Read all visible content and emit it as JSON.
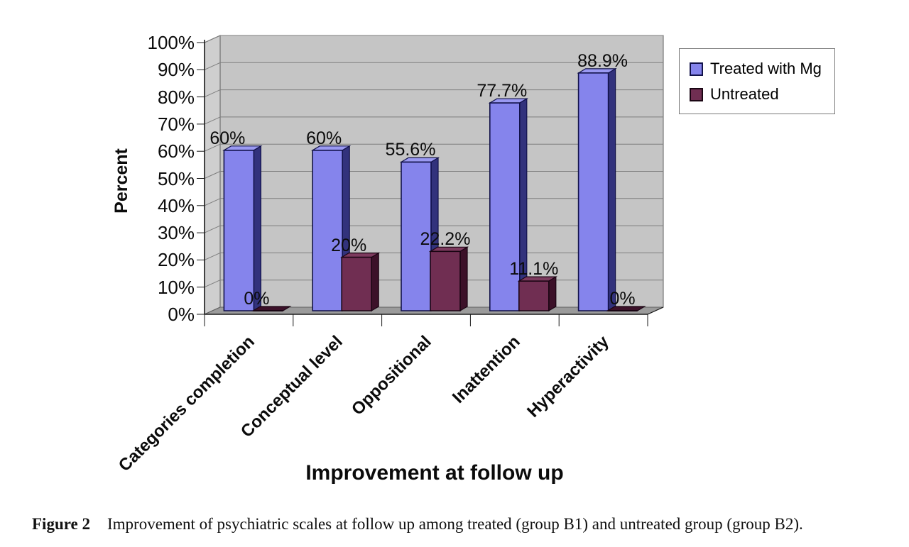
{
  "figure": {
    "caption_label": "Figure 2",
    "caption_text": "Improvement of psychiatric scales at follow up among treated (group B1) and untreated group (group B2)."
  },
  "chart_data": {
    "type": "bar",
    "subtype": "3d-clustered-column",
    "title": "",
    "xlabel": "Improvement at follow up",
    "ylabel": "Percent",
    "categories": [
      "Categories completion",
      "Conceptual level",
      "Oppositional",
      "Inattention",
      "Hyperactivity"
    ],
    "series": [
      {
        "name": "Treated with Mg",
        "values": [
          60,
          60,
          55.6,
          77.7,
          88.9
        ],
        "data_labels": [
          "60%",
          "60%",
          "55.6%",
          "77.7%",
          "88.9%"
        ],
        "fill": "#8584ec",
        "side": "#32327c",
        "top": "#9a99f2",
        "border": "#12124a"
      },
      {
        "name": "Untreated",
        "values": [
          0,
          20,
          22.2,
          11.1,
          0
        ],
        "data_labels": [
          "0%",
          "20%",
          "22.2%",
          "11.1%",
          "0%"
        ],
        "fill": "#702e52",
        "side": "#3c1129",
        "top": "#7d3a5e",
        "border": "#1a0513"
      }
    ],
    "ylim": [
      0,
      100
    ],
    "ytick_step": 10,
    "ytick_labels": [
      "0%",
      "10%",
      "20%",
      "30%",
      "40%",
      "50%",
      "60%",
      "70%",
      "80%",
      "90%",
      "100%"
    ],
    "grid": true,
    "legend_position": "top-right",
    "colors": {
      "back_wall": "#c5c5c5",
      "side_wall": "#cfcfcf",
      "floor": "#9b9b9b",
      "gridline": "#7e7e7e",
      "wall_border": "#5f5f5f",
      "axis": "#1a1a1a",
      "label_text": "#0b0b0b"
    }
  }
}
